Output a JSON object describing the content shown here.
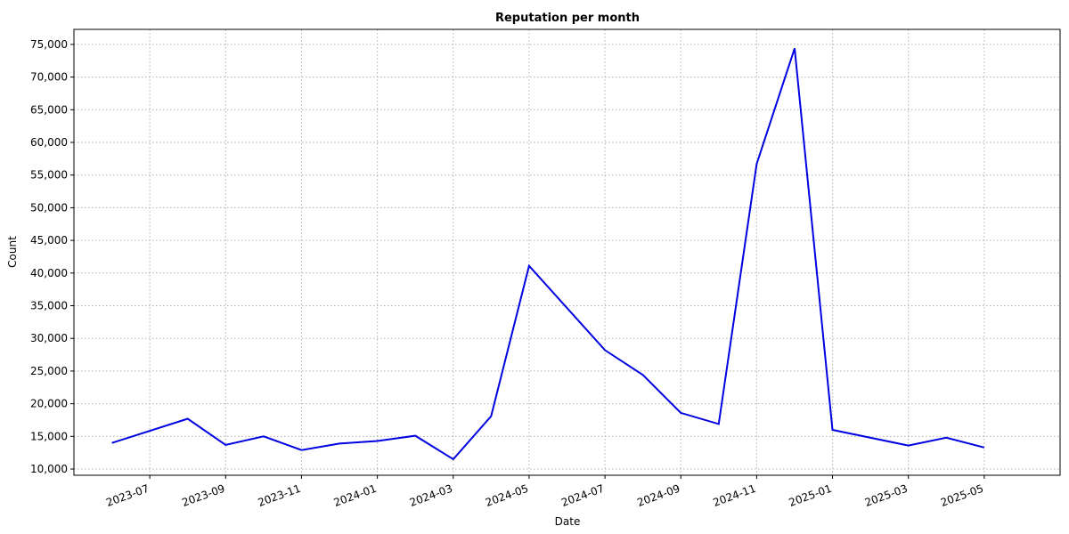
{
  "chart_data": {
    "type": "line",
    "title": "Reputation per month",
    "x_label": "Date",
    "y_label": "Count",
    "x": [
      "2023-06",
      "2023-08",
      "2023-09",
      "2023-10",
      "2023-11",
      "2023-12",
      "2024-01",
      "2024-02",
      "2024-03",
      "2024-04",
      "2024-05",
      "2024-07",
      "2024-08",
      "2024-09",
      "2024-10",
      "2024-11",
      "2024-12",
      "2025-01",
      "2025-03",
      "2025-04",
      "2025-05"
    ],
    "series": [
      {
        "name": "Reputation",
        "color": "#0000e0",
        "values": [
          14000,
          17700,
          13700,
          15000,
          12900,
          13900,
          14300,
          15100,
          11500,
          18100,
          41100,
          28200,
          24400,
          18600,
          16900,
          56700,
          74400,
          16000,
          13600,
          14800,
          13300
        ]
      }
    ],
    "xlim": [
      "2023-05",
      "2025-07"
    ],
    "xticks": [
      "2023-07",
      "2023-09",
      "2023-11",
      "2024-01",
      "2024-03",
      "2024-05",
      "2024-07",
      "2024-09",
      "2024-11",
      "2025-01",
      "2025-03",
      "2025-05"
    ],
    "ylim": [
      9050,
      77300
    ],
    "yticks": [
      {
        "value": 10000,
        "label": "10,000"
      },
      {
        "value": 15000,
        "label": "15,000"
      },
      {
        "value": 20000,
        "label": "20,000"
      },
      {
        "value": 25000,
        "label": "25,000"
      },
      {
        "value": 30000,
        "label": "30,000"
      },
      {
        "value": 35000,
        "label": "35,000"
      },
      {
        "value": 40000,
        "label": "40,000"
      },
      {
        "value": 45000,
        "label": "45,000"
      },
      {
        "value": 50000,
        "label": "50,000"
      },
      {
        "value": 55000,
        "label": "55,000"
      },
      {
        "value": 60000,
        "label": "60,000"
      },
      {
        "value": 65000,
        "label": "65,000"
      },
      {
        "value": 70000,
        "label": "70,000"
      },
      {
        "value": 75000,
        "label": "75,000"
      }
    ],
    "grid": true
  }
}
